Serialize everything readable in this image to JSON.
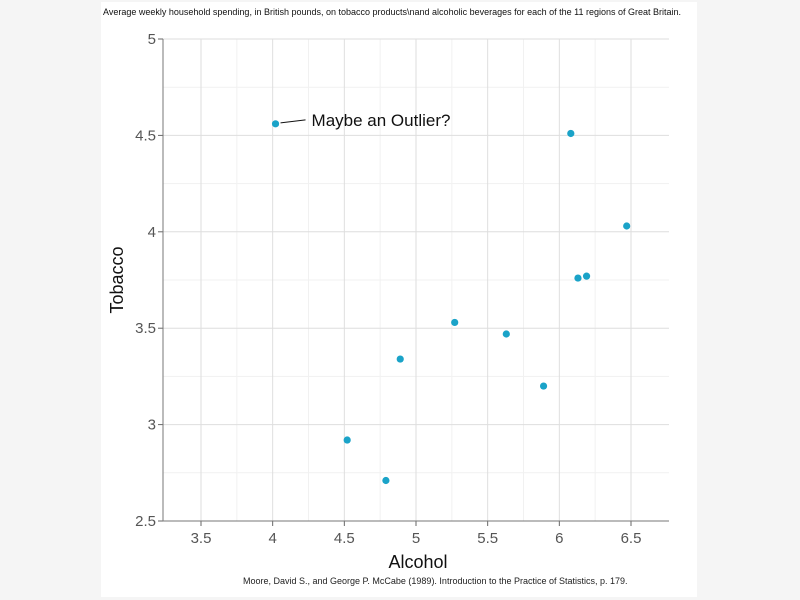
{
  "chart_data": {
    "type": "scatter",
    "title": "Average weekly household spending, in British pounds, on tobacco products\\nand alcoholic beverages for each of the 11 regions of Great Britain.",
    "xlabel": "Alcohol",
    "ylabel": "Tobacco",
    "xlim": [
      3.2,
      6.75
    ],
    "ylim": [
      2.5,
      5
    ],
    "xticks": [
      "3.5",
      "4",
      "4.5",
      "5",
      "5.5",
      "6",
      "6.5"
    ],
    "yticks": [
      "2.5",
      "3",
      "3.5",
      "4",
      "4.5",
      "5"
    ],
    "grid": true,
    "point_color": "#1aa3c8",
    "points": [
      {
        "x": 6.47,
        "y": 4.03
      },
      {
        "x": 6.13,
        "y": 3.76
      },
      {
        "x": 6.19,
        "y": 3.77
      },
      {
        "x": 4.89,
        "y": 3.34
      },
      {
        "x": 5.63,
        "y": 3.47
      },
      {
        "x": 4.52,
        "y": 2.92
      },
      {
        "x": 5.89,
        "y": 3.2
      },
      {
        "x": 4.79,
        "y": 2.71
      },
      {
        "x": 5.27,
        "y": 3.53
      },
      {
        "x": 6.08,
        "y": 4.51
      },
      {
        "x": 4.02,
        "y": 4.56
      }
    ],
    "annotation": {
      "text": "Maybe an Outlier?",
      "x": 4.02,
      "y": 4.56
    },
    "source": "Moore, David S., and George P. McCabe (1989). Introduction to the Practice of Statistics, p. 179."
  }
}
